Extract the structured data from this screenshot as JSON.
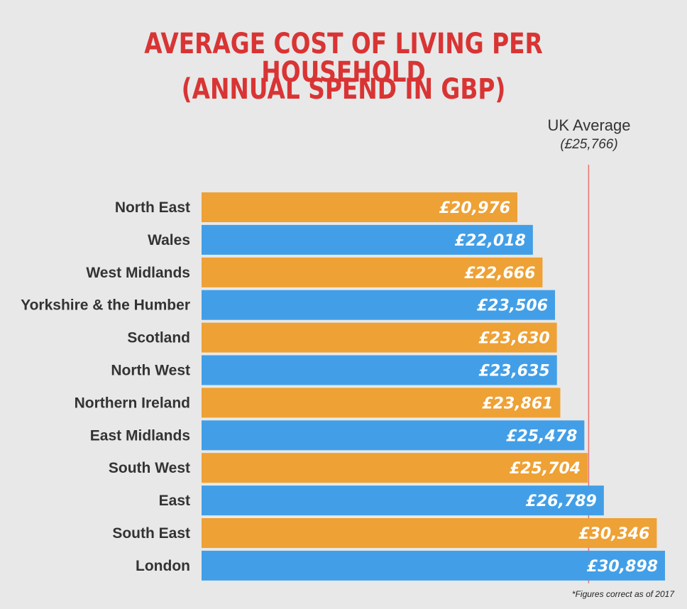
{
  "title_line1": "AVERAGE COST OF LIVING PER HOUSEHOLD",
  "title_line2": "(ANNUAL SPEND IN GBP)",
  "uk_average": {
    "label": "UK Average",
    "value_label": "(£25,766)",
    "value": 25766
  },
  "footnote": "*Figures correct as of 2017",
  "colors": {
    "orange": "#eea135",
    "blue": "#429fe7",
    "avg_line": "#e8716f",
    "title": "#d93434"
  },
  "chart_data": {
    "type": "bar",
    "orientation": "horizontal",
    "categories": [
      "North East",
      "Wales",
      "West Midlands",
      "Yorkshire & the Humber",
      "Scotland",
      "North West",
      "Northern Ireland",
      "East Midlands",
      "South West",
      "East",
      "South East",
      "London"
    ],
    "values": [
      20976,
      22018,
      22666,
      23506,
      23630,
      23635,
      23861,
      25478,
      25704,
      26789,
      30346,
      30898
    ],
    "value_labels": [
      "£20,976",
      "£22,018",
      "£22,666",
      "£23,506",
      "£23,630",
      "£23,635",
      "£23,861",
      "£25,478",
      "£25,704",
      "£26,789",
      "£30,346",
      "£30,898"
    ],
    "bar_colors": [
      "orange",
      "blue",
      "orange",
      "blue",
      "orange",
      "blue",
      "orange",
      "blue",
      "orange",
      "blue",
      "orange",
      "blue"
    ],
    "reference_line": 25766,
    "title": "AVERAGE COST OF LIVING PER HOUSEHOLD (ANNUAL SPEND IN GBP)"
  }
}
